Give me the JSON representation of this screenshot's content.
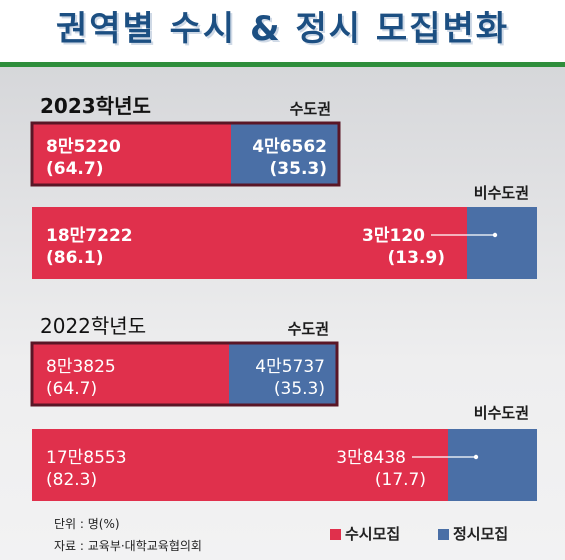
{
  "title": "권역별 수시 & 정시 모집변화",
  "colors": {
    "susi": "#e0304c",
    "jeongsi": "#4a6fa6",
    "metro_border": "#5a1626",
    "title": "#1c4f82",
    "rule": "#2f8e3c"
  },
  "legend": {
    "susi": "수시모집",
    "jeongsi": "정시모집"
  },
  "notes": {
    "unit": "단위 : 명(%)",
    "source": "자료 : 교육부·대학교육협의회"
  },
  "chart_data": {
    "type": "bar",
    "orientation": "horizontal-stacked",
    "series_names": [
      "수시모집",
      "정시모집"
    ],
    "groups": [
      {
        "year": "2023학년도",
        "rows": [
          {
            "region": "수도권",
            "susi": {
              "count": "8만5220",
              "pct": "(64.7)",
              "value": 64.7
            },
            "jeongsi": {
              "count": "4만6562",
              "pct": "(35.3)",
              "value": 35.3
            }
          },
          {
            "region": "비수도권",
            "susi": {
              "count": "18만7222",
              "pct": "(86.1)",
              "value": 86.1
            },
            "jeongsi": {
              "count": "3만120",
              "pct": "(13.9)",
              "value": 13.9
            }
          }
        ]
      },
      {
        "year": "2022학년도",
        "rows": [
          {
            "region": "수도권",
            "susi": {
              "count": "8만3825",
              "pct": "(64.7)",
              "value": 64.7
            },
            "jeongsi": {
              "count": "4만5737",
              "pct": "(35.3)",
              "value": 35.3
            }
          },
          {
            "region": "비수도권",
            "susi": {
              "count": "17만8553",
              "pct": "(82.3)",
              "value": 82.3
            },
            "jeongsi": {
              "count": "3만8438",
              "pct": "(17.7)",
              "value": 17.7
            }
          }
        ]
      }
    ]
  }
}
